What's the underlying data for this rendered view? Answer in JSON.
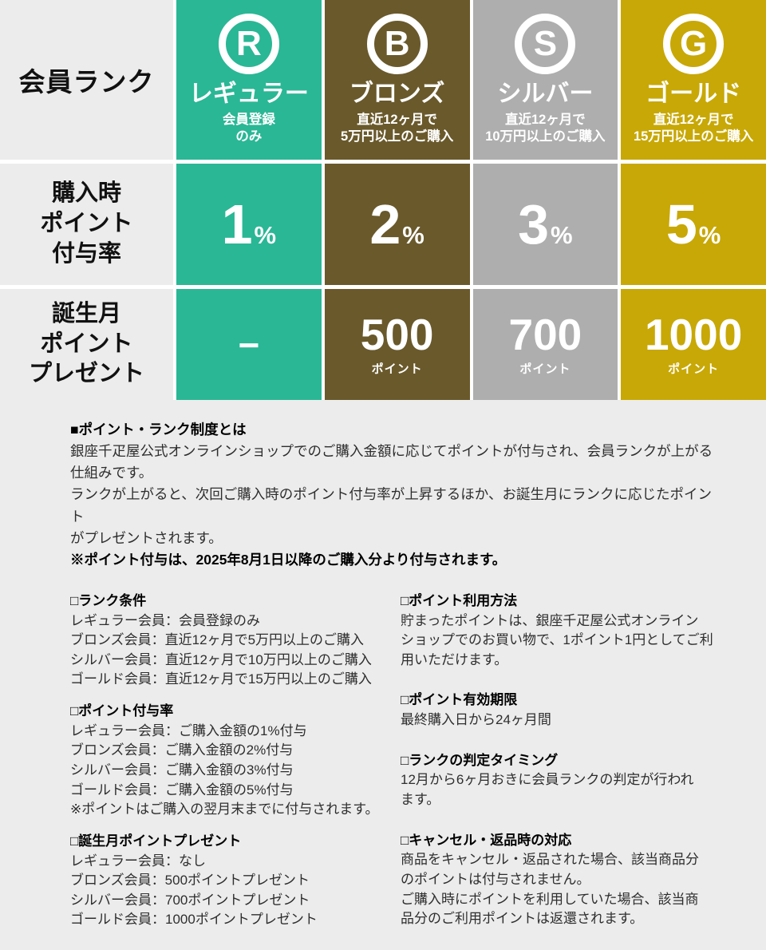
{
  "colors": {
    "page_bg": "#ececec",
    "label_bg": "#ececec",
    "gap": "#ffffff",
    "regular": "#2ab795",
    "bronze": "#6a592b",
    "silver": "#aeaeae",
    "gold": "#c8a806",
    "cell_text": "#ffffff",
    "body_text": "#2e2e2e"
  },
  "table": {
    "rank_label": "会員ランク",
    "purchase_row_label": "購入時\nポイント\n付与率",
    "birthday_row_label": "誕生月\nポイント\nプレゼント",
    "tiers": [
      {
        "id": "regular",
        "letter": "R",
        "name": "レギュラー",
        "condition": "会員登録\nのみ",
        "purchase_rate": "1",
        "rate_unit": "%",
        "birthday": "−"
      },
      {
        "id": "bronze",
        "letter": "B",
        "name": "ブロンズ",
        "condition": "直近12ヶ月で\n5万円以上のご購入",
        "purchase_rate": "2",
        "rate_unit": "%",
        "birthday": "500",
        "birthday_unit": "ポイント"
      },
      {
        "id": "silver",
        "letter": "S",
        "name": "シルバー",
        "condition": "直近12ヶ月で\n10万円以上のご購入",
        "purchase_rate": "3",
        "rate_unit": "%",
        "birthday": "700",
        "birthday_unit": "ポイント"
      },
      {
        "id": "gold",
        "letter": "G",
        "name": "ゴールド",
        "condition": "直近12ヶ月で\n15万円以上のご購入",
        "purchase_rate": "5",
        "rate_unit": "%",
        "birthday": "1000",
        "birthday_unit": "ポイント"
      }
    ]
  },
  "intro": {
    "heading": "■ポイント・ランク制度とは",
    "body": "銀座千疋屋公式オンラインショップでのご購入金額に応じてポイントが付与され、会員ランクが上がる\n仕組みです。\nランクが上がると、次回ご購入時のポイント付与率が上昇するほか、お誕生月にランクに応じたポイント\nがプレゼントされます。",
    "note": "※ポイント付与は、2025年8月1日以降のご購入分より付与されます。"
  },
  "sections_left": [
    {
      "heading": "□ランク条件",
      "body": "レギュラー会員：会員登録のみ\nブロンズ会員：直近12ヶ月で5万円以上のご購入\nシルバー会員：直近12ヶ月で10万円以上のご購入\nゴールド会員：直近12ヶ月で15万円以上のご購入"
    },
    {
      "heading": "□ポイント付与率",
      "body": "レギュラー会員：ご購入金額の1%付与\nブロンズ会員：ご購入金額の2%付与\nシルバー会員：ご購入金額の3%付与\nゴールド会員：ご購入金額の5%付与\n※ポイントはご購入の翌月末までに付与されます。"
    },
    {
      "heading": "□誕生月ポイントプレゼント",
      "body": "レギュラー会員：なし\nブロンズ会員：500ポイントプレゼント\nシルバー会員：700ポイントプレゼント\nゴールド会員：1000ポイントプレゼント"
    }
  ],
  "sections_right": [
    {
      "heading": "□ポイント利用方法",
      "body": "貯まったポイントは、銀座千疋屋公式オンライン\nショップでのお買い物で、1ポイント1円としてご利\n用いただけます。"
    },
    {
      "heading": "□ポイント有効期限",
      "body": "最終購入日から24ヶ月間"
    },
    {
      "heading": "□ランクの判定タイミング",
      "body": "12月から6ヶ月おきに会員ランクの判定が行われ\nます。"
    },
    {
      "heading": "□キャンセル・返品時の対応",
      "body": "商品をキャンセル・返品された場合、該当商品分\nのポイントは付与されません。\nご購入時にポイントを利用していた場合、該当商\n品分のご利用ポイントは返還されます。"
    }
  ]
}
